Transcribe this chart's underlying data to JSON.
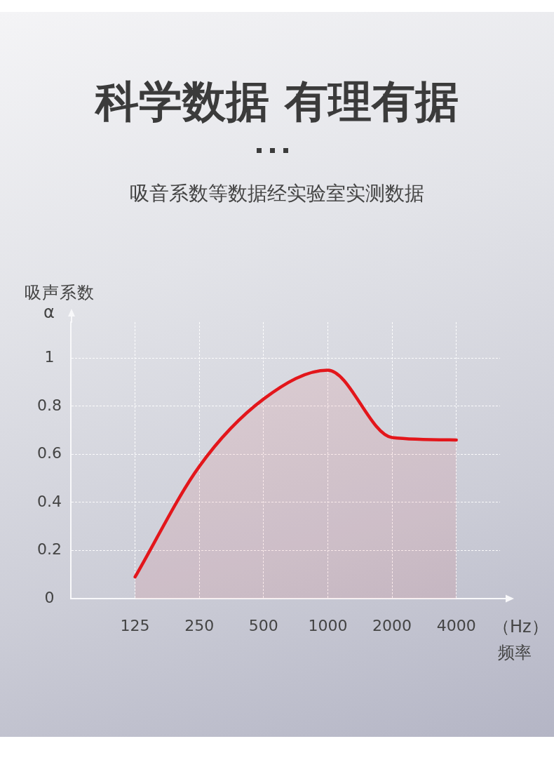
{
  "chart_data": {
    "type": "area",
    "title": "科学数据 有理有据",
    "subtitle": "吸音系数等数据经实验室实测数据",
    "ylabel": "吸声系数\nα",
    "xlabel": "（Hz）频率",
    "categories": [
      "125",
      "250",
      "500",
      "1000",
      "2000",
      "4000"
    ],
    "series": [
      {
        "color": "#e3161b",
        "values": [
          0.09,
          0.55,
          0.83,
          0.95,
          0.67,
          0.66
        ]
      }
    ],
    "ylim": [
      0,
      1.15
    ],
    "yticks": [
      0,
      0.2,
      0.4,
      0.6,
      0.8,
      1
    ],
    "grid": true
  }
}
